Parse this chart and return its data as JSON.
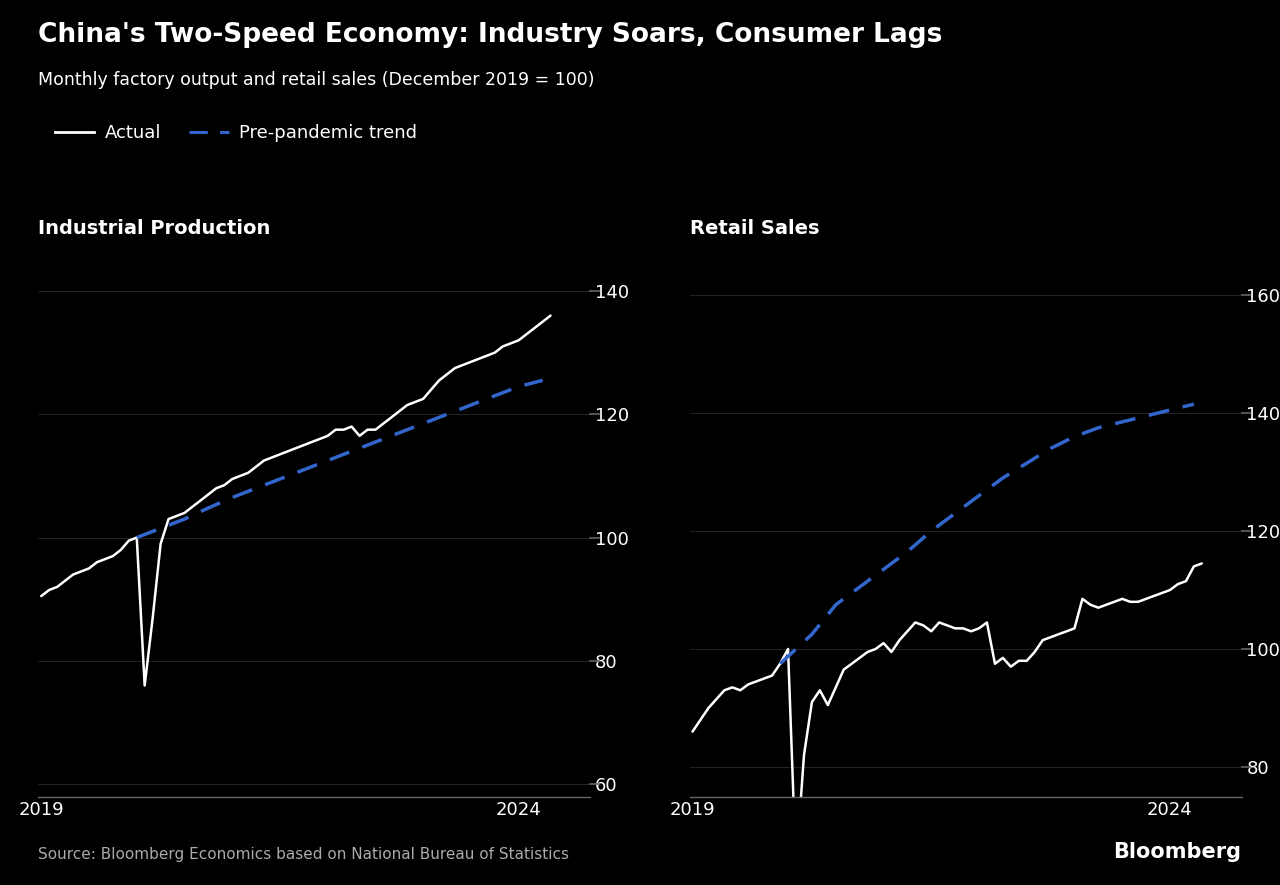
{
  "title": "China's Two-Speed Economy: Industry Soars, Consumer Lags",
  "subtitle": "Monthly factory output and retail sales (December 2019 = 100)",
  "legend_actual": "Actual",
  "legend_trend": "Pre-pandemic trend",
  "left_title": "Industrial Production",
  "right_title": "Retail Sales",
  "source": "Source: Bloomberg Economics based on National Bureau of Statistics",
  "brand": "Bloomberg",
  "bg_color": "#000000",
  "text_color": "#ffffff",
  "axis_color": "#666666",
  "actual_color": "#ffffff",
  "trend_color": "#3366cc",
  "left_ylim": [
    58,
    147
  ],
  "right_ylim": [
    75,
    168
  ],
  "left_yticks": [
    60,
    80,
    100,
    120,
    140
  ],
  "right_yticks": [
    80,
    100,
    120,
    140,
    160
  ],
  "xlim_left": [
    2018.97,
    2024.75
  ],
  "xlim_right": [
    2018.97,
    2024.75
  ],
  "xtick_positions": [
    2019,
    2024
  ],
  "ip_actual_x": [
    2019.0,
    2019.083,
    2019.167,
    2019.25,
    2019.333,
    2019.417,
    2019.5,
    2019.583,
    2019.667,
    2019.75,
    2019.833,
    2019.917,
    2020.0,
    2020.083,
    2020.167,
    2020.25,
    2020.333,
    2020.417,
    2020.5,
    2020.583,
    2020.667,
    2020.75,
    2020.833,
    2020.917,
    2021.0,
    2021.083,
    2021.167,
    2021.25,
    2021.333,
    2021.417,
    2021.5,
    2021.583,
    2021.667,
    2021.75,
    2021.833,
    2021.917,
    2022.0,
    2022.083,
    2022.167,
    2022.25,
    2022.333,
    2022.417,
    2022.5,
    2022.583,
    2022.667,
    2022.75,
    2022.833,
    2022.917,
    2023.0,
    2023.083,
    2023.167,
    2023.25,
    2023.333,
    2023.417,
    2023.5,
    2023.583,
    2023.667,
    2023.75,
    2023.833,
    2023.917,
    2024.0,
    2024.083,
    2024.167,
    2024.25,
    2024.333
  ],
  "ip_actual_y": [
    90.5,
    91.5,
    92.0,
    93.0,
    94.0,
    94.5,
    95.0,
    96.0,
    96.5,
    97.0,
    98.0,
    99.5,
    100.0,
    76.0,
    87.0,
    99.0,
    103.0,
    103.5,
    104.0,
    105.0,
    106.0,
    107.0,
    108.0,
    108.5,
    109.5,
    110.0,
    110.5,
    111.5,
    112.5,
    113.0,
    113.5,
    114.0,
    114.5,
    115.0,
    115.5,
    116.0,
    116.5,
    117.5,
    117.5,
    118.0,
    116.5,
    117.5,
    117.5,
    118.5,
    119.5,
    120.5,
    121.5,
    122.0,
    122.5,
    124.0,
    125.5,
    126.5,
    127.5,
    128.0,
    128.5,
    129.0,
    129.5,
    130.0,
    131.0,
    131.5,
    132.0,
    133.0,
    134.0,
    135.0,
    136.0
  ],
  "ip_trend_x": [
    2020.0,
    2020.25,
    2020.5,
    2020.75,
    2021.0,
    2021.25,
    2021.5,
    2021.75,
    2022.0,
    2022.25,
    2022.5,
    2022.75,
    2023.0,
    2023.25,
    2023.5,
    2023.75,
    2024.0,
    2024.25
  ],
  "ip_trend_y": [
    100.0,
    101.5,
    103.0,
    104.8,
    106.5,
    108.0,
    109.5,
    111.0,
    112.5,
    114.0,
    115.5,
    117.0,
    118.5,
    120.0,
    121.5,
    123.0,
    124.5,
    125.5
  ],
  "rs_actual_x": [
    2019.0,
    2019.083,
    2019.167,
    2019.25,
    2019.333,
    2019.417,
    2019.5,
    2019.583,
    2019.667,
    2019.75,
    2019.833,
    2019.917,
    2020.0,
    2020.083,
    2020.167,
    2020.25,
    2020.333,
    2020.417,
    2020.5,
    2020.583,
    2020.667,
    2020.75,
    2020.833,
    2020.917,
    2021.0,
    2021.083,
    2021.167,
    2021.25,
    2021.333,
    2021.417,
    2021.5,
    2021.583,
    2021.667,
    2021.75,
    2021.833,
    2021.917,
    2022.0,
    2022.083,
    2022.167,
    2022.25,
    2022.333,
    2022.417,
    2022.5,
    2022.583,
    2022.667,
    2022.75,
    2022.833,
    2022.917,
    2023.0,
    2023.083,
    2023.167,
    2023.25,
    2023.333,
    2023.417,
    2023.5,
    2023.583,
    2023.667,
    2023.75,
    2023.833,
    2023.917,
    2024.0,
    2024.083,
    2024.167,
    2024.25,
    2024.333
  ],
  "rs_actual_y": [
    86.0,
    88.0,
    90.0,
    91.5,
    93.0,
    93.5,
    93.0,
    94.0,
    94.5,
    95.0,
    95.5,
    97.5,
    100.0,
    63.0,
    82.0,
    91.0,
    93.0,
    90.5,
    93.5,
    96.5,
    97.5,
    98.5,
    99.5,
    100.0,
    101.0,
    99.5,
    101.5,
    103.0,
    104.5,
    104.0,
    103.0,
    104.5,
    104.0,
    103.5,
    103.5,
    103.0,
    103.5,
    104.5,
    97.5,
    98.5,
    97.0,
    98.0,
    98.0,
    99.5,
    101.5,
    102.0,
    102.5,
    103.0,
    103.5,
    108.5,
    107.5,
    107.0,
    107.5,
    108.0,
    108.5,
    108.0,
    108.0,
    108.5,
    109.0,
    109.5,
    110.0,
    111.0,
    111.5,
    114.0,
    114.5
  ],
  "rs_trend_x": [
    2019.917,
    2020.25,
    2020.5,
    2020.75,
    2021.0,
    2021.25,
    2021.5,
    2021.75,
    2022.0,
    2022.25,
    2022.5,
    2022.75,
    2023.0,
    2023.25,
    2023.5,
    2023.75,
    2024.0,
    2024.25
  ],
  "rs_trend_y": [
    97.5,
    102.5,
    107.5,
    110.5,
    113.5,
    116.5,
    120.0,
    123.0,
    126.0,
    129.0,
    131.5,
    134.0,
    136.0,
    137.5,
    138.5,
    139.5,
    140.5,
    141.5
  ]
}
